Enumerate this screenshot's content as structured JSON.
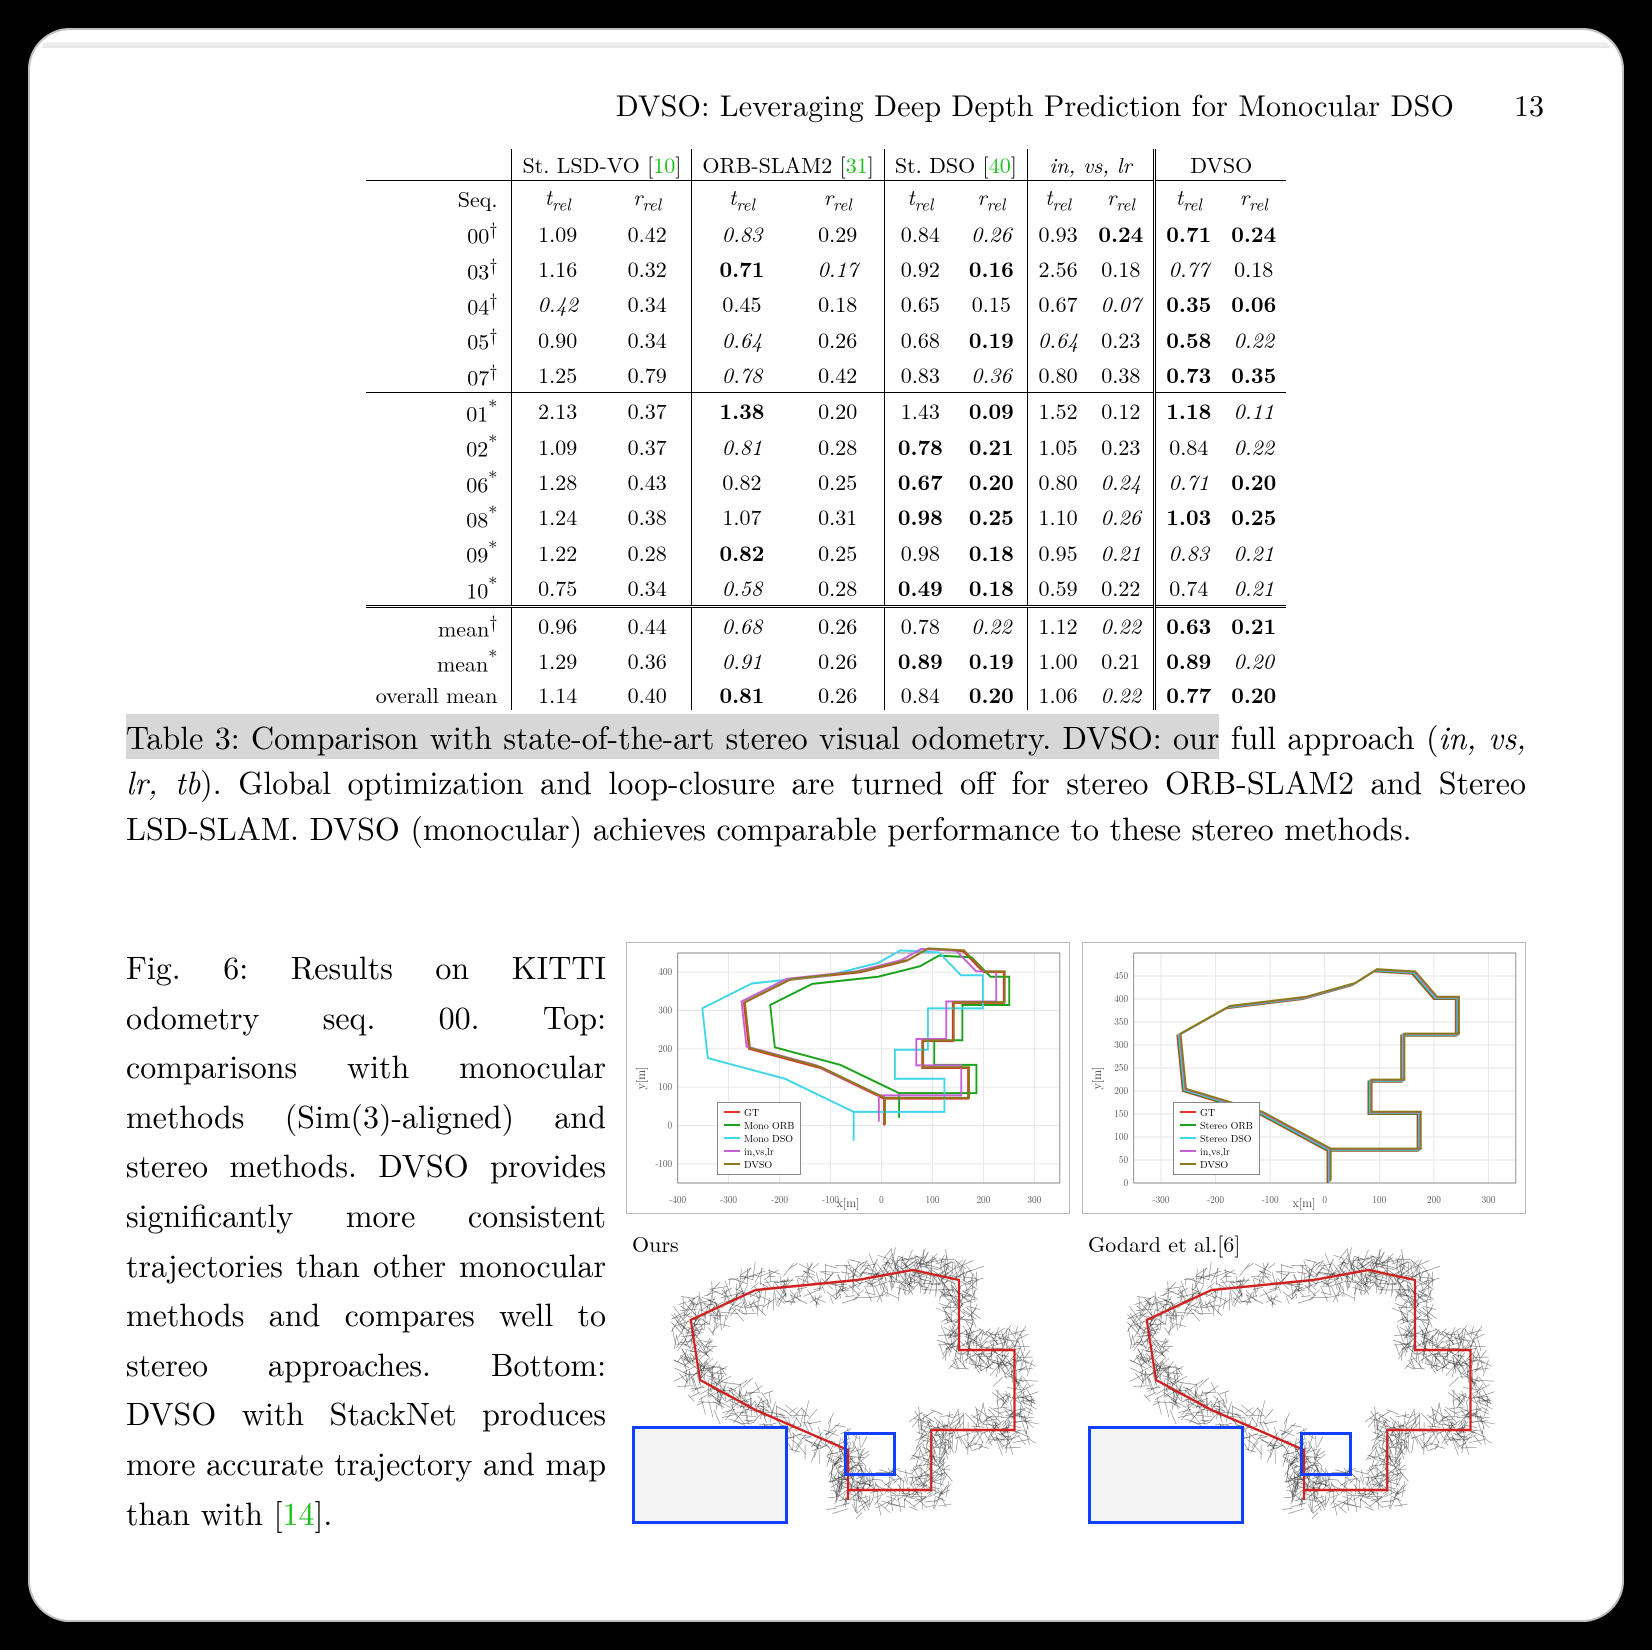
{
  "header": {
    "title": "DVSO: Leveraging Deep Depth Prediction for Monocular DSO",
    "page": "13"
  },
  "table": {
    "methods": [
      {
        "name": "St. LSD-VO",
        "ref": "10"
      },
      {
        "name": "ORB-SLAM2",
        "ref": "31"
      },
      {
        "name": "St. DSO",
        "ref": "40"
      },
      {
        "name_html": "in, vs, lr",
        "italic": true
      },
      {
        "name": "DVSO"
      }
    ],
    "sub_headers": [
      "t_rel",
      "r_rel"
    ],
    "rows": [
      {
        "seq": "00",
        "mark": "†",
        "vals": [
          [
            "1.09",
            "0.42"
          ],
          [
            "0.83",
            "0.29",
            "i",
            ""
          ],
          [
            "0.84",
            "0.26",
            "",
            "i"
          ],
          [
            "0.93",
            "0.24",
            "",
            "b"
          ],
          [
            "0.71",
            "0.24",
            "b",
            "b"
          ]
        ]
      },
      {
        "seq": "03",
        "mark": "†",
        "vals": [
          [
            "1.16",
            "0.32"
          ],
          [
            "0.71",
            "0.17",
            "b",
            "i"
          ],
          [
            "0.92",
            "0.16",
            "",
            "b"
          ],
          [
            "2.56",
            "0.18"
          ],
          [
            "0.77",
            "0.18",
            "i",
            ""
          ]
        ]
      },
      {
        "seq": "04",
        "mark": "†",
        "vals": [
          [
            "0.42",
            "0.34",
            "i",
            ""
          ],
          [
            "0.45",
            "0.18"
          ],
          [
            "0.65",
            "0.15"
          ],
          [
            "0.67",
            "0.07",
            "",
            "i"
          ],
          [
            "0.35",
            "0.06",
            "b",
            "b"
          ]
        ]
      },
      {
        "seq": "05",
        "mark": "†",
        "vals": [
          [
            "0.90",
            "0.34"
          ],
          [
            "0.64",
            "0.26",
            "i",
            ""
          ],
          [
            "0.68",
            "0.19",
            "",
            "b"
          ],
          [
            "0.64",
            "0.23",
            "i",
            ""
          ],
          [
            "0.58",
            "0.22",
            "b",
            "i"
          ]
        ]
      },
      {
        "seq": "07",
        "mark": "†",
        "vals": [
          [
            "1.25",
            "0.79"
          ],
          [
            "0.78",
            "0.42",
            "i",
            ""
          ],
          [
            "0.83",
            "0.36",
            "",
            "i"
          ],
          [
            "0.80",
            "0.38"
          ],
          [
            "0.73",
            "0.35",
            "b",
            "b"
          ]
        ]
      },
      {
        "seq": "01",
        "mark": "*",
        "rule": true,
        "vals": [
          [
            "2.13",
            "0.37"
          ],
          [
            "1.38",
            "0.20",
            "b",
            ""
          ],
          [
            "1.43",
            "0.09",
            "",
            "b"
          ],
          [
            "1.52",
            "0.12"
          ],
          [
            "1.18",
            "0.11",
            "b",
            "i"
          ]
        ]
      },
      {
        "seq": "02",
        "mark": "*",
        "vals": [
          [
            "1.09",
            "0.37"
          ],
          [
            "0.81",
            "0.28",
            "i",
            ""
          ],
          [
            "0.78",
            "0.21",
            "b",
            "b"
          ],
          [
            "1.05",
            "0.23"
          ],
          [
            "0.84",
            "0.22",
            "",
            "i"
          ]
        ]
      },
      {
        "seq": "06",
        "mark": "*",
        "vals": [
          [
            "1.28",
            "0.43"
          ],
          [
            "0.82",
            "0.25"
          ],
          [
            "0.67",
            "0.20",
            "b",
            "b"
          ],
          [
            "0.80",
            "0.24",
            "",
            "i"
          ],
          [
            "0.71",
            "0.20",
            "i",
            "b"
          ]
        ]
      },
      {
        "seq": "08",
        "mark": "*",
        "vals": [
          [
            "1.24",
            "0.38"
          ],
          [
            "1.07",
            "0.31"
          ],
          [
            "0.98",
            "0.25",
            "b",
            "b"
          ],
          [
            "1.10",
            "0.26",
            "",
            "i"
          ],
          [
            "1.03",
            "0.25",
            "b",
            "b"
          ]
        ]
      },
      {
        "seq": "09",
        "mark": "*",
        "vals": [
          [
            "1.22",
            "0.28"
          ],
          [
            "0.82",
            "0.25",
            "b",
            ""
          ],
          [
            "0.98",
            "0.18",
            "",
            "b"
          ],
          [
            "0.95",
            "0.21",
            "",
            "i"
          ],
          [
            "0.83",
            "0.21",
            "i",
            "i"
          ]
        ]
      },
      {
        "seq": "10",
        "mark": "*",
        "vals": [
          [
            "0.75",
            "0.34"
          ],
          [
            "0.58",
            "0.28",
            "i",
            ""
          ],
          [
            "0.49",
            "0.18",
            "b",
            "b"
          ],
          [
            "0.59",
            "0.22"
          ],
          [
            "0.74",
            "0.21",
            "",
            "i"
          ]
        ]
      },
      {
        "seq": "mean",
        "mark": "†",
        "ruled": true,
        "vals": [
          [
            "0.96",
            "0.44"
          ],
          [
            "0.68",
            "0.26",
            "i",
            ""
          ],
          [
            "0.78",
            "0.22",
            "",
            "i"
          ],
          [
            "1.12",
            "0.22",
            "",
            "i"
          ],
          [
            "0.63",
            "0.21",
            "b",
            "b"
          ]
        ]
      },
      {
        "seq": "mean",
        "mark": "*",
        "vals": [
          [
            "1.29",
            "0.36"
          ],
          [
            "0.91",
            "0.26",
            "i",
            ""
          ],
          [
            "0.89",
            "0.19",
            "b",
            "b"
          ],
          [
            "1.00",
            "0.21"
          ],
          [
            "0.89",
            "0.20",
            "b",
            "i"
          ]
        ]
      },
      {
        "seq": "overall mean",
        "mark": "",
        "vals": [
          [
            "1.14",
            "0.40"
          ],
          [
            "0.81",
            "0.26",
            "b",
            ""
          ],
          [
            "0.84",
            "0.20",
            "",
            "b"
          ],
          [
            "1.06",
            "0.22",
            "",
            "i"
          ],
          [
            "0.77",
            "0.20",
            "b",
            "b"
          ]
        ]
      }
    ]
  },
  "table_caption": {
    "highlight": "Table 3: Comparison with state-of-the-art stereo visual odometry. DVSO: our",
    "rest": "full approach (in, vs, lr, tb). Global optimization and loop-closure are turned off for stereo ORB-SLAM2 and Stereo LSD-SLAM. DVSO (monocular) achieves comparable performance to these stereo methods."
  },
  "figure": {
    "label": "Fig. 6:",
    "text": "Results on KITTI odometry seq. 00. Top: comparisons with monocular methods (Sim(3)-aligned) and stereo methods. DVSO provides significantly more consistent trajectories than other monocular methods and compares well to stereo approaches. Bottom: DVSO with StackNet produces more accurate trajectory and map than with [14].",
    "ref_text": "14",
    "top_left": {
      "xlabel": "x[m]",
      "ylabel": "y[m]",
      "xlim": [
        -400,
        350
      ],
      "ylim": [
        -150,
        450
      ],
      "xticks": [
        -400,
        -300,
        -200,
        -100,
        0,
        100,
        200,
        300
      ],
      "yticks": [
        -100,
        0,
        100,
        200,
        300,
        400
      ],
      "legend": [
        {
          "label": "GT",
          "color": "#e03030"
        },
        {
          "label": "Mono ORB",
          "color": "#1aa31a"
        },
        {
          "label": "Mono DSO",
          "color": "#3fd6e8"
        },
        {
          "label": "in,vs,lr",
          "color": "#c95fd6"
        },
        {
          "label": "DVSO",
          "color": "#8a7a1a"
        }
      ]
    },
    "top_right": {
      "xlabel": "x[m]",
      "ylabel": "y[m]",
      "xlim": [
        -350,
        350
      ],
      "ylim": [
        0,
        500
      ],
      "xticks": [
        -300,
        -200,
        -100,
        0,
        100,
        200,
        300
      ],
      "yticks": [
        0,
        50,
        100,
        150,
        200,
        250,
        300,
        350,
        400,
        450
      ],
      "legend": [
        {
          "label": "GT",
          "color": "#e03030"
        },
        {
          "label": "Stereo ORB",
          "color": "#1aa31a"
        },
        {
          "label": "Stereo DSO",
          "color": "#3fd6e8"
        },
        {
          "label": "in,vs,lr",
          "color": "#c95fd6"
        },
        {
          "label": "DVSO",
          "color": "#8a7a1a"
        }
      ]
    },
    "bottom_left_tag": "Ours",
    "bottom_right_tag": "Godard et al.[6]",
    "traj_color": "#d02020",
    "inset_border": "#1040ff"
  }
}
